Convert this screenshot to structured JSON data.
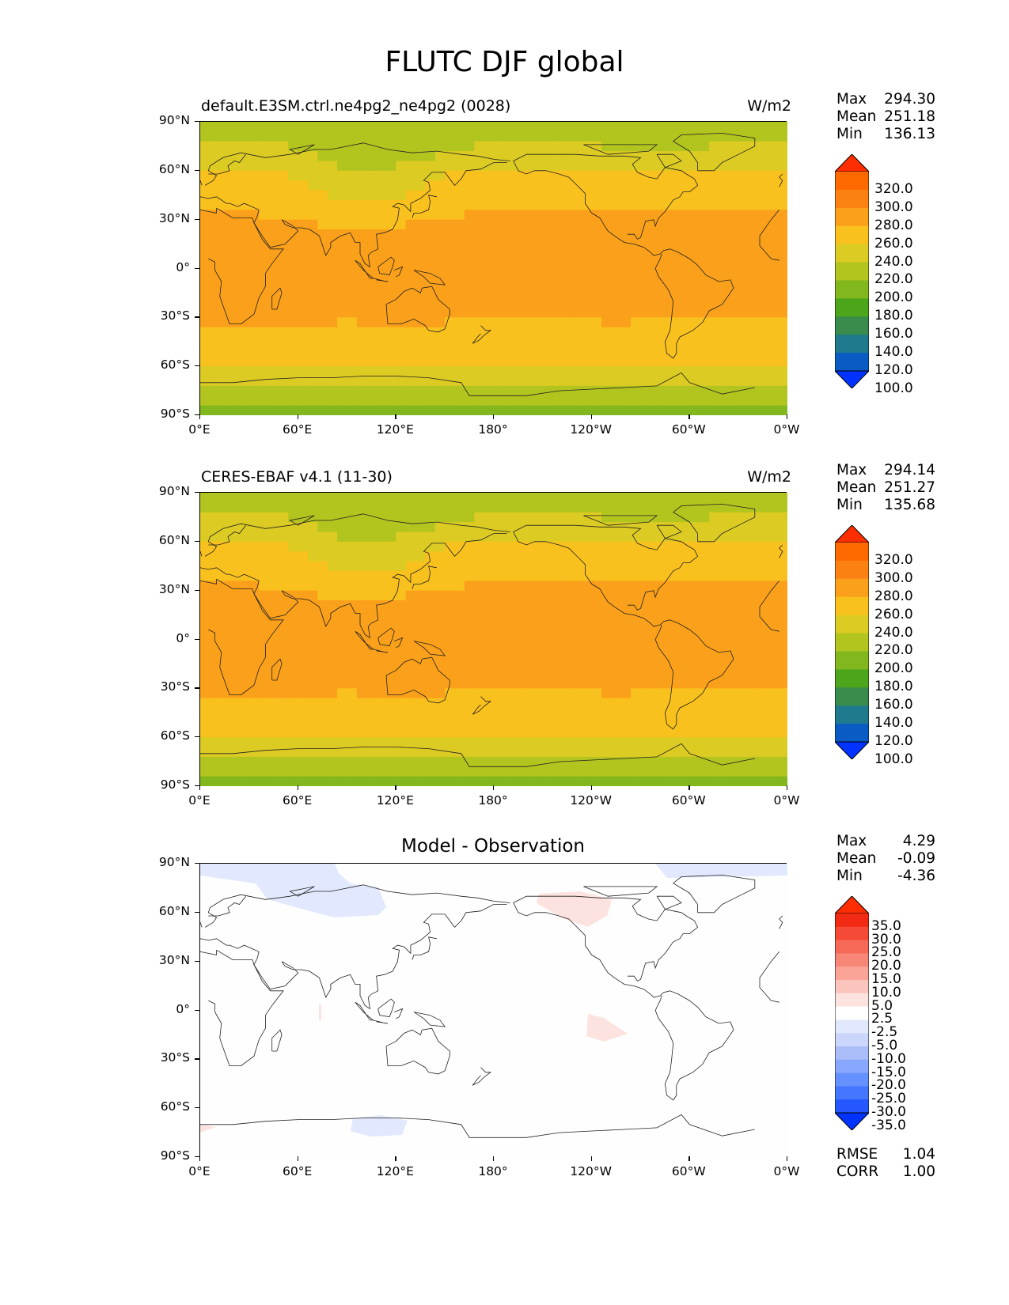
{
  "figure_title": "FLUTC DJF global",
  "axes": {
    "y_ticks": [
      "90°N",
      "60°N",
      "30°N",
      "0°",
      "30°S",
      "60°S",
      "90°S"
    ],
    "x_ticks": [
      "0°E",
      "60°E",
      "120°E",
      "180°",
      "120°W",
      "60°W",
      "0°W"
    ]
  },
  "panels": [
    {
      "title": "default.E3SM.ctrl.ne4pg2_ne4pg2 (0028)",
      "units": "W/m2",
      "stats": [
        {
          "k": "Max",
          "v": "294.30"
        },
        {
          "k": "Mean",
          "v": "251.18"
        },
        {
          "k": "Min",
          "v": "136.13"
        }
      ],
      "colorbar_labels": [
        "320.0",
        "300.0",
        "280.0",
        "260.0",
        "240.0",
        "220.0",
        "200.0",
        "180.0",
        "160.0",
        "140.0",
        "120.0",
        "100.0"
      ]
    },
    {
      "title": "CERES-EBAF v4.1 (11-30)",
      "units": "W/m2",
      "stats": [
        {
          "k": "Max",
          "v": "294.14"
        },
        {
          "k": "Mean",
          "v": "251.27"
        },
        {
          "k": "Min",
          "v": "135.68"
        }
      ],
      "colorbar_labels": [
        "320.0",
        "300.0",
        "280.0",
        "260.0",
        "240.0",
        "220.0",
        "200.0",
        "180.0",
        "160.0",
        "140.0",
        "120.0",
        "100.0"
      ]
    },
    {
      "title": "Model - Observation",
      "units": "",
      "stats": [
        {
          "k": "Max",
          "v": "4.29"
        },
        {
          "k": "Mean",
          "v": "-0.09"
        },
        {
          "k": "Min",
          "v": "-4.36"
        }
      ],
      "colorbar_labels": [
        "35.0",
        "30.0",
        "25.0",
        "20.0",
        "15.0",
        "10.0",
        "5.0",
        "2.5",
        "-2.5",
        "-5.0",
        "-10.0",
        "-15.0",
        "-20.0",
        "-25.0",
        "-30.0",
        "-35.0"
      ],
      "metrics": [
        {
          "k": "RMSE",
          "v": "1.04"
        },
        {
          "k": "CORR",
          "v": "1.00"
        }
      ]
    }
  ],
  "colors": {
    "main_scale": [
      "#0033ff",
      "#0a5bc4",
      "#1e7a8c",
      "#3a8c4c",
      "#4da51c",
      "#82b81e",
      "#b2c41e",
      "#dccb23",
      "#f9c11e",
      "#fba01a",
      "#fb8212",
      "#ff6a00",
      "#ff2e00"
    ],
    "diff_scale": [
      "#0033ff",
      "#2457ff",
      "#4576ff",
      "#6590ff",
      "#88a8ff",
      "#aabdf9",
      "#cad6fb",
      "#e2e8fd",
      "#ffffff",
      "#fde3e0",
      "#fbc4bc",
      "#f9a497",
      "#f88676",
      "#f66957",
      "#f44a36",
      "#f22a14",
      "#ff2e00"
    ]
  },
  "chart_data": {
    "type": "map",
    "description_of_variable": "FLUTC DJF global",
    "projection": "PlateCarree",
    "lon_range": [
      0,
      360
    ],
    "lat_range": [
      -90,
      90
    ],
    "contour_levels_main": [
      100,
      120,
      140,
      160,
      180,
      200,
      220,
      240,
      260,
      280,
      300,
      320
    ],
    "contour_levels_diff": [
      -35,
      -30,
      -25,
      -20,
      -15,
      -10,
      -5,
      -2.5,
      2.5,
      5,
      10,
      15,
      20,
      25,
      30,
      35
    ],
    "panels": [
      {
        "name": "default.E3SM.ctrl.ne4pg2_ne4pg2 (0028)",
        "max": 294.3,
        "mean": 251.18,
        "min": 136.13
      },
      {
        "name": "CERES-EBAF v4.1 (11-30)",
        "max": 294.14,
        "mean": 251.27,
        "min": 135.68
      },
      {
        "name": "Model - Observation",
        "max": 4.29,
        "mean": -0.09,
        "min": -4.36,
        "rmse": 1.04,
        "corr": 1.0
      }
    ]
  }
}
